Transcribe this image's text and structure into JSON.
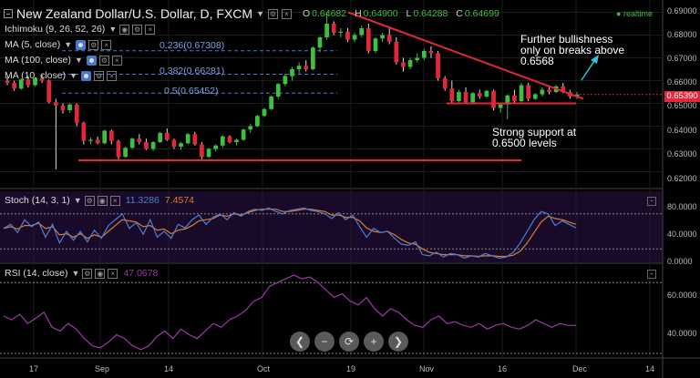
{
  "header": {
    "title": "New Zealand Dollar/U.S. Dollar, D, FXCM",
    "ohlc": [
      {
        "label": "O",
        "value": "0.64682"
      },
      {
        "label": "H",
        "value": "0.64900"
      },
      {
        "label": "L",
        "value": "0.64288"
      },
      {
        "label": "C",
        "value": "0.64699"
      }
    ],
    "realtime": "realtime"
  },
  "indicators": [
    {
      "label": "Ichimoku (9, 26, 52, 26)"
    },
    {
      "label": "MA (5, close)"
    },
    {
      "label": "MA (100, close)"
    },
    {
      "label": "MA (10, close)"
    }
  ],
  "fib_levels": [
    {
      "label": "0.236(0.67308)",
      "price": 0.67308
    },
    {
      "label": "0.382(0.66281)",
      "price": 0.66281
    },
    {
      "label": "0.5(0.65452)",
      "price": 0.65452
    }
  ],
  "annotations": {
    "bullish": "Further bullishness only on breaks above 0.6568",
    "support": "Strong support at 0.6500 levels"
  },
  "current_price": "0.65390",
  "price_axis": [
    "0.69000",
    "0.68000",
    "0.67000",
    "0.66000",
    "0.65000",
    "0.64000",
    "0.63000",
    "0.62000"
  ],
  "stoch": {
    "label": "Stoch (14, 3, 1)",
    "k": "11.3286",
    "d": "7.4574",
    "axis": [
      "80.0000",
      "40.0000",
      "0.0000"
    ]
  },
  "rsi": {
    "label": "RSI (14, close)",
    "value": "47.0678",
    "axis": [
      "60.0000",
      "40.0000"
    ]
  },
  "time_axis": [
    "17",
    "Sep",
    "14",
    "Oct",
    "19",
    "Nov",
    "16",
    "Dec",
    "14"
  ],
  "nav_buttons": [
    "zoom-out",
    "zoom-out-minus",
    "reset",
    "zoom-in",
    "scroll-right"
  ],
  "colors": {
    "bull": "#3fbf3f",
    "bear": "#e0283a",
    "stoch_k": "#4a7fd6",
    "stoch_d": "#e07a2a",
    "rsi": "#9a3aa6",
    "fib": "#4a78c8"
  },
  "chart_data": {
    "type": "candlestick",
    "title": "New Zealand Dollar/U.S. Dollar, D, FXCM",
    "ylim": [
      0.617,
      0.691
    ],
    "ohlc": [
      [
        0.66,
        0.6615,
        0.658,
        0.659
      ],
      [
        0.659,
        0.66,
        0.6555,
        0.6565
      ],
      [
        0.6565,
        0.661,
        0.656,
        0.6605
      ],
      [
        0.6605,
        0.662,
        0.657,
        0.658
      ],
      [
        0.658,
        0.6615,
        0.6575,
        0.661
      ],
      [
        0.661,
        0.6625,
        0.659,
        0.66
      ],
      [
        0.66,
        0.6605,
        0.65,
        0.6505
      ],
      [
        0.6505,
        0.652,
        0.621,
        0.649
      ],
      [
        0.649,
        0.65,
        0.6455,
        0.647
      ],
      [
        0.647,
        0.65,
        0.646,
        0.6495
      ],
      [
        0.6495,
        0.65,
        0.64,
        0.6415
      ],
      [
        0.6415,
        0.642,
        0.632,
        0.6335
      ],
      [
        0.6335,
        0.635,
        0.632,
        0.634
      ],
      [
        0.634,
        0.6355,
        0.632,
        0.6325
      ],
      [
        0.6325,
        0.6385,
        0.632,
        0.638
      ],
      [
        0.638,
        0.6385,
        0.632,
        0.6335
      ],
      [
        0.6335,
        0.634,
        0.6255,
        0.6265
      ],
      [
        0.6265,
        0.631,
        0.626,
        0.6305
      ],
      [
        0.6305,
        0.635,
        0.63,
        0.6345
      ],
      [
        0.6345,
        0.6365,
        0.632,
        0.633
      ],
      [
        0.633,
        0.6345,
        0.6295,
        0.63
      ],
      [
        0.63,
        0.6335,
        0.629,
        0.633
      ],
      [
        0.633,
        0.6375,
        0.6325,
        0.637
      ],
      [
        0.637,
        0.639,
        0.6335,
        0.634
      ],
      [
        0.634,
        0.6345,
        0.63,
        0.631
      ],
      [
        0.631,
        0.633,
        0.6295,
        0.6325
      ],
      [
        0.6325,
        0.637,
        0.632,
        0.6365
      ],
      [
        0.6365,
        0.6375,
        0.6315,
        0.632
      ],
      [
        0.632,
        0.633,
        0.6255,
        0.6265
      ],
      [
        0.6265,
        0.6305,
        0.626,
        0.63
      ],
      [
        0.63,
        0.632,
        0.629,
        0.6315
      ],
      [
        0.6315,
        0.636,
        0.6305,
        0.6355
      ],
      [
        0.6355,
        0.636,
        0.6325,
        0.633
      ],
      [
        0.633,
        0.6345,
        0.6315,
        0.634
      ],
      [
        0.634,
        0.639,
        0.6335,
        0.6385
      ],
      [
        0.6385,
        0.641,
        0.637,
        0.64
      ],
      [
        0.64,
        0.645,
        0.6395,
        0.6445
      ],
      [
        0.6445,
        0.648,
        0.644,
        0.6475
      ],
      [
        0.6475,
        0.6535,
        0.647,
        0.653
      ],
      [
        0.653,
        0.659,
        0.652,
        0.6585
      ],
      [
        0.6585,
        0.663,
        0.6575,
        0.662
      ],
      [
        0.662,
        0.666,
        0.66,
        0.665
      ],
      [
        0.665,
        0.668,
        0.663,
        0.6665
      ],
      [
        0.6665,
        0.669,
        0.664,
        0.665
      ],
      [
        0.665,
        0.675,
        0.6645,
        0.6745
      ],
      [
        0.6745,
        0.6795,
        0.6725,
        0.679
      ],
      [
        0.679,
        0.69,
        0.678,
        0.685
      ],
      [
        0.685,
        0.686,
        0.68,
        0.681
      ],
      [
        0.681,
        0.683,
        0.679,
        0.6815
      ],
      [
        0.6815,
        0.683,
        0.677,
        0.678
      ],
      [
        0.678,
        0.681,
        0.677,
        0.68
      ],
      [
        0.68,
        0.684,
        0.679,
        0.683
      ],
      [
        0.683,
        0.685,
        0.672,
        0.673
      ],
      [
        0.673,
        0.679,
        0.672,
        0.6785
      ],
      [
        0.6785,
        0.681,
        0.677,
        0.68
      ],
      [
        0.68,
        0.683,
        0.676,
        0.677
      ],
      [
        0.677,
        0.679,
        0.667,
        0.668
      ],
      [
        0.668,
        0.67,
        0.664,
        0.666
      ],
      [
        0.666,
        0.67,
        0.665,
        0.669
      ],
      [
        0.669,
        0.672,
        0.668,
        0.67
      ],
      [
        0.67,
        0.674,
        0.669,
        0.673
      ],
      [
        0.673,
        0.675,
        0.67,
        0.672
      ],
      [
        0.672,
        0.673,
        0.66,
        0.661
      ],
      [
        0.661,
        0.662,
        0.6555,
        0.6565
      ],
      [
        0.6565,
        0.66,
        0.65,
        0.651
      ],
      [
        0.651,
        0.656,
        0.6505,
        0.655
      ],
      [
        0.655,
        0.657,
        0.65,
        0.6505
      ],
      [
        0.6505,
        0.655,
        0.65,
        0.6545
      ],
      [
        0.6545,
        0.656,
        0.652,
        0.653
      ],
      [
        0.653,
        0.656,
        0.6525,
        0.6555
      ],
      [
        0.6555,
        0.656,
        0.647,
        0.648
      ],
      [
        0.648,
        0.65,
        0.646,
        0.6495
      ],
      [
        0.6495,
        0.654,
        0.643,
        0.6535
      ],
      [
        0.6535,
        0.656,
        0.65,
        0.651
      ],
      [
        0.651,
        0.659,
        0.6505,
        0.658
      ],
      [
        0.658,
        0.659,
        0.651,
        0.652
      ],
      [
        0.652,
        0.6545,
        0.6515,
        0.654
      ],
      [
        0.654,
        0.657,
        0.653,
        0.656
      ],
      [
        0.656,
        0.658,
        0.654,
        0.655
      ],
      [
        0.655,
        0.658,
        0.6545,
        0.6575
      ],
      [
        0.6575,
        0.659,
        0.6545,
        0.655
      ],
      [
        0.655,
        0.656,
        0.652,
        0.653
      ],
      [
        0.653,
        0.655,
        0.652,
        0.6539
      ]
    ],
    "fib_levels": [
      0.67308,
      0.66281,
      0.65452
    ],
    "support_lines": [
      0.625,
      0.65
    ],
    "resistance_trendline": [
      0.69,
      0.6568
    ],
    "stoch_k": [
      55,
      62,
      48,
      70,
      58,
      66,
      40,
      62,
      30,
      50,
      35,
      50,
      32,
      52,
      38,
      60,
      70,
      80,
      55,
      65,
      45,
      70,
      40,
      50,
      38,
      62,
      56,
      70,
      78,
      62,
      74,
      80,
      70,
      82,
      76,
      84,
      88,
      86,
      90,
      84,
      80,
      86,
      88,
      90,
      86,
      84,
      80,
      72,
      82,
      70,
      78,
      58,
      40,
      55,
      48,
      50,
      38,
      28,
      26,
      32,
      10,
      8,
      14,
      6,
      12,
      10,
      4,
      8,
      6,
      12,
      8,
      4,
      6,
      14,
      30,
      50,
      70,
      84,
      80,
      60,
      68,
      62,
      56
    ],
    "stoch_d": [
      55,
      58,
      54,
      60,
      60,
      64,
      55,
      58,
      44,
      46,
      40,
      46,
      38,
      44,
      40,
      50,
      60,
      70,
      68,
      66,
      58,
      60,
      52,
      54,
      46,
      52,
      54,
      60,
      68,
      70,
      72,
      78,
      76,
      80,
      78,
      82,
      86,
      88,
      88,
      88,
      84,
      84,
      86,
      88,
      88,
      86,
      84,
      78,
      78,
      74,
      74,
      68,
      56,
      50,
      48,
      50,
      44,
      36,
      30,
      28,
      20,
      14,
      12,
      10,
      10,
      10,
      8,
      8,
      7,
      8,
      8,
      7,
      7,
      9,
      16,
      30,
      48,
      66,
      76,
      72,
      70,
      66,
      62
    ],
    "rsi": [
      52,
      50,
      53,
      48,
      51,
      54,
      46,
      44,
      48,
      45,
      40,
      36,
      35,
      38,
      42,
      40,
      36,
      34,
      36,
      41,
      44,
      40,
      45,
      42,
      40,
      44,
      48,
      46,
      50,
      52,
      55,
      60,
      62,
      68,
      70,
      72,
      74,
      72,
      73,
      70,
      66,
      62,
      64,
      60,
      58,
      62,
      56,
      52,
      56,
      54,
      50,
      47,
      46,
      50,
      52,
      48,
      49,
      47,
      46,
      48,
      45,
      47,
      48,
      46,
      45,
      47,
      50,
      48,
      46,
      48,
      47,
      47
    ]
  }
}
